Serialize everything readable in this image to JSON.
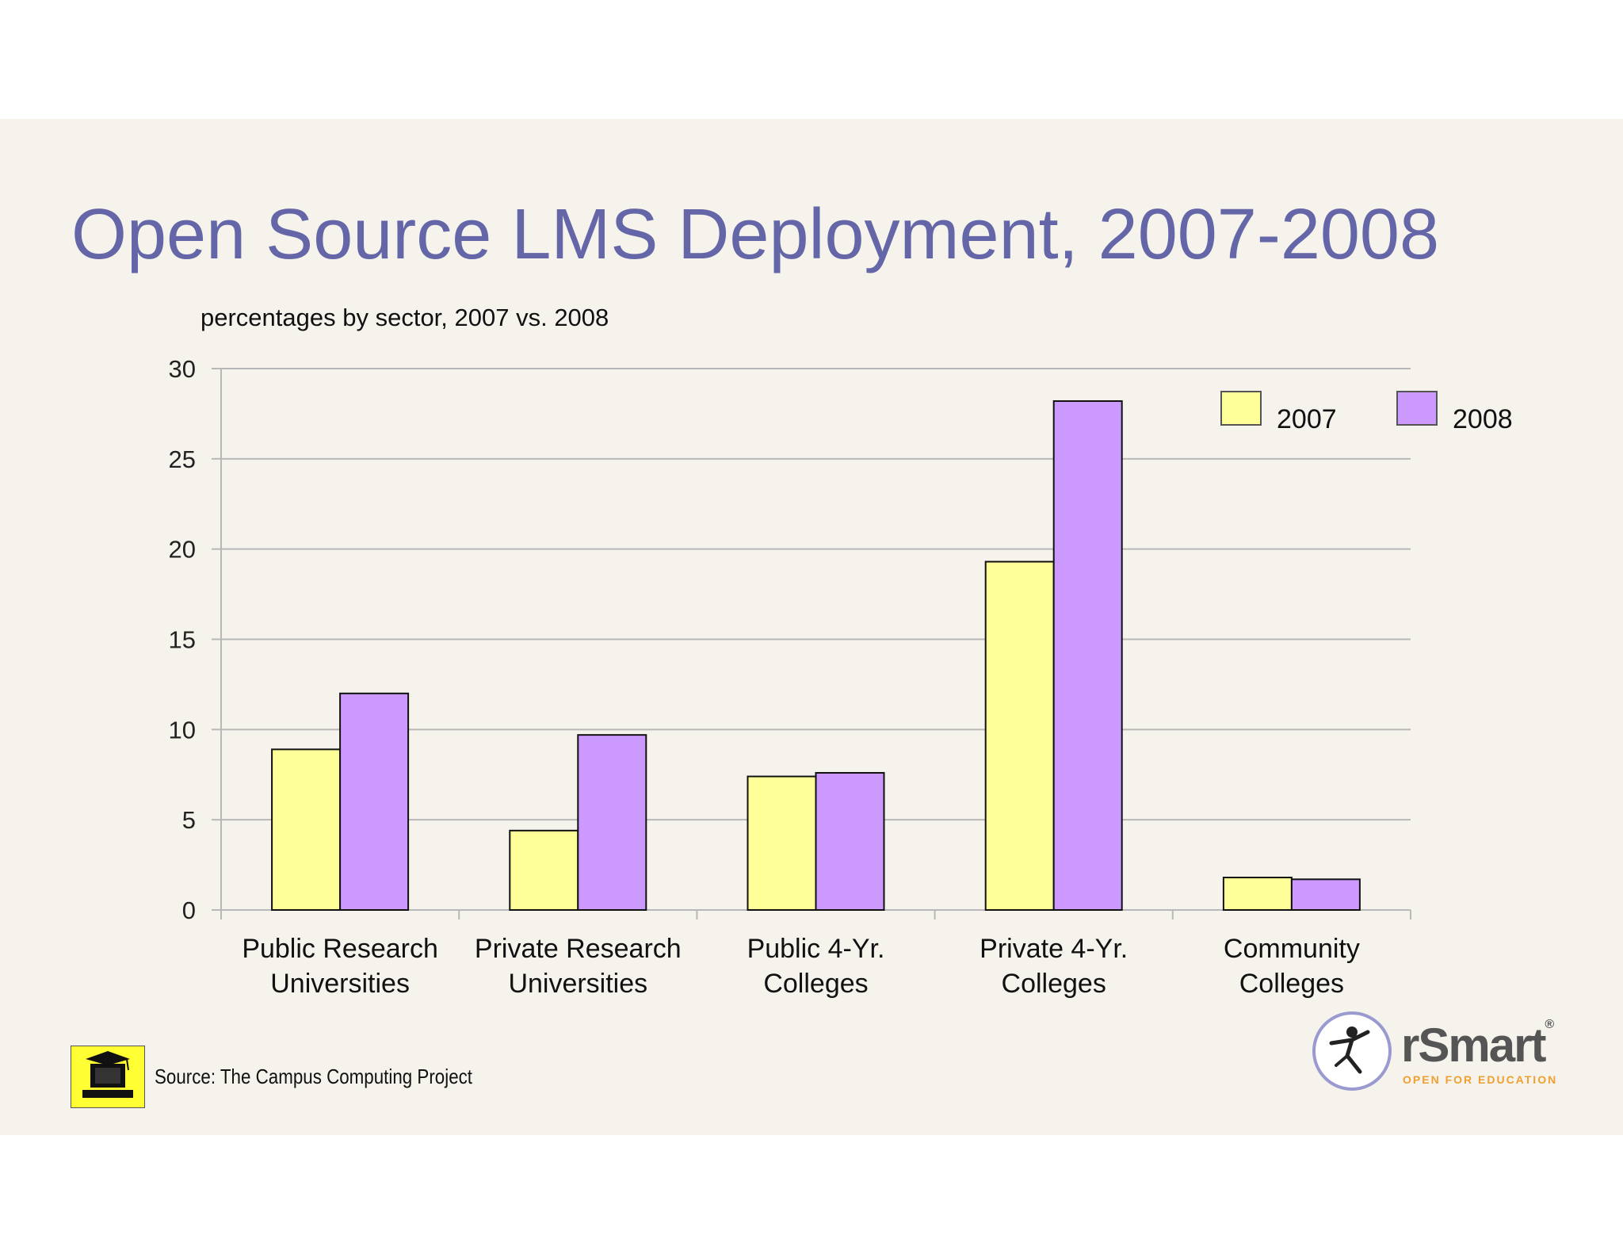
{
  "slide": {
    "title": "Open Source LMS Deployment, 2007-2008",
    "subtitle": "percentages by sector, 2007 vs. 2008",
    "source": "Source: The Campus Computing Project",
    "brand_name": "rSmart",
    "brand_registered": "®",
    "brand_tagline": "OPEN FOR EDUCATION"
  },
  "chart_data": {
    "type": "bar",
    "title": "",
    "xlabel": "",
    "ylabel": "",
    "ylim": [
      0,
      30
    ],
    "yticks": [
      0,
      5,
      10,
      15,
      20,
      25,
      30
    ],
    "grid": true,
    "legend_position": "top-right",
    "categories": [
      [
        "Public Research",
        "Universities"
      ],
      [
        "Private Research",
        "Universities"
      ],
      [
        "Public 4-Yr.",
        "Colleges"
      ],
      [
        "Private  4-Yr.",
        "Colleges"
      ],
      [
        "Community",
        "Colleges"
      ]
    ],
    "series": [
      {
        "name": "2007",
        "color": "#ffff99",
        "values": [
          8.9,
          4.4,
          7.4,
          19.3,
          1.8
        ]
      },
      {
        "name": "2008",
        "color": "#cc99ff",
        "values": [
          12.0,
          9.7,
          7.6,
          28.2,
          1.7
        ]
      }
    ]
  }
}
